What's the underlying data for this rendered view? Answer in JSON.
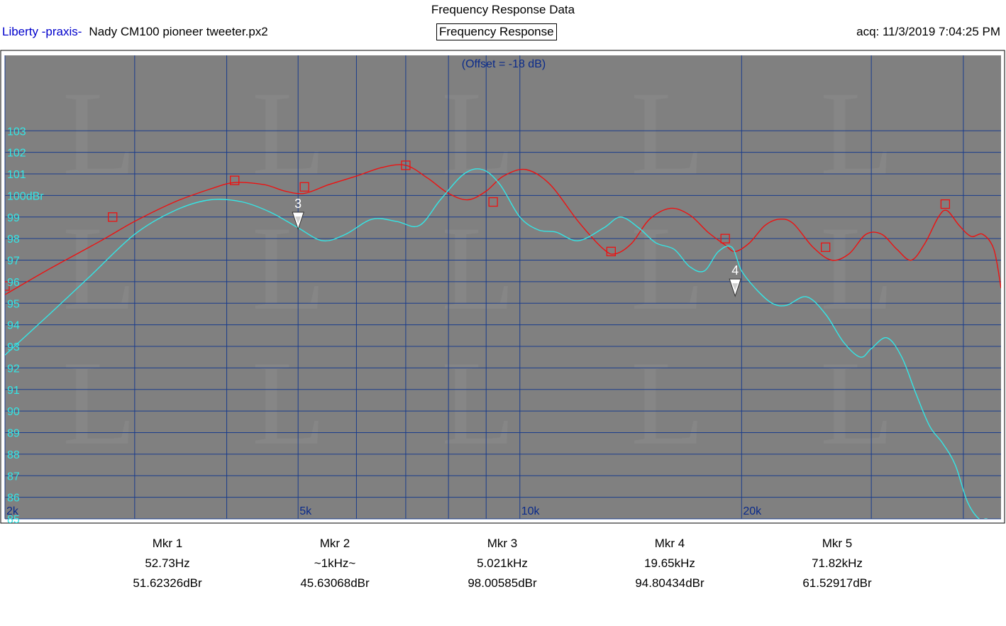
{
  "header": {
    "title": "Frequency Response Data",
    "brand": "Liberty -praxis-",
    "file": "Nady CM100 pioneer tweeter.px2",
    "view_label": "Frequency Response",
    "acquired": "acq: 11/3/2019 7:04:25 PM"
  },
  "chart_data": {
    "type": "line",
    "title": "",
    "offset_label": "(Offset = -18 dB)",
    "x_scale": "log",
    "xlim": [
      2000,
      45000
    ],
    "ylim": [
      85,
      106.5
    ],
    "y_ticks": [
      85,
      86,
      87,
      88,
      89,
      90,
      91,
      92,
      93,
      94,
      95,
      96,
      97,
      98,
      99,
      100,
      101,
      102,
      103
    ],
    "y_tick_labels": [
      "85",
      "86",
      "87",
      "88",
      "89",
      "90",
      "91",
      "92",
      "93",
      "94",
      "95",
      "96",
      "97",
      "98",
      "99",
      "100dBr",
      "101",
      "102",
      "103"
    ],
    "x_tick_labels": [
      {
        "x": 2000,
        "label": "2k"
      },
      {
        "x": 5000,
        "label": "5k"
      },
      {
        "x": 10000,
        "label": "10k"
      },
      {
        "x": 20000,
        "label": "20k"
      }
    ],
    "x_gridlines": [
      2000,
      3000,
      4000,
      5000,
      6000,
      7000,
      8000,
      9000,
      10000,
      20000,
      30000,
      40000
    ],
    "grid": true,
    "colors": {
      "background": "#808080",
      "grid": "#1a3c8c",
      "red": "#ee1111",
      "cyan": "#33e6e6",
      "tick_text": "#33e6e6",
      "x_tick_text": "#0a2a8a"
    },
    "series": [
      {
        "color": "#ee1111",
        "markers": "square",
        "points": [
          [
            2000,
            95.4
          ],
          [
            2300,
            96.6
          ],
          [
            2700,
            97.9
          ],
          [
            3000,
            98.8
          ],
          [
            3400,
            99.7
          ],
          [
            3800,
            100.3
          ],
          [
            4100,
            100.6
          ],
          [
            4500,
            100.5
          ],
          [
            4800,
            100.2
          ],
          [
            5100,
            100.1
          ],
          [
            5500,
            100.5
          ],
          [
            6000,
            100.9
          ],
          [
            6500,
            101.3
          ],
          [
            7000,
            101.4
          ],
          [
            7500,
            100.8
          ],
          [
            8000,
            100.1
          ],
          [
            8500,
            99.8
          ],
          [
            9000,
            100.2
          ],
          [
            9500,
            100.9
          ],
          [
            10200,
            101.2
          ],
          [
            11000,
            100.5
          ],
          [
            12000,
            98.8
          ],
          [
            13000,
            97.5
          ],
          [
            13500,
            97.3
          ],
          [
            14200,
            97.8
          ],
          [
            15000,
            98.9
          ],
          [
            16000,
            99.4
          ],
          [
            17000,
            99.1
          ],
          [
            18000,
            98.3
          ],
          [
            19000,
            97.7
          ],
          [
            19600,
            97.4
          ],
          [
            20500,
            97.8
          ],
          [
            21500,
            98.6
          ],
          [
            22500,
            98.9
          ],
          [
            23500,
            98.7
          ],
          [
            25000,
            97.6
          ],
          [
            26500,
            97.0
          ],
          [
            28000,
            97.3
          ],
          [
            29500,
            98.2
          ],
          [
            31000,
            98.2
          ],
          [
            32500,
            97.5
          ],
          [
            34000,
            97.0
          ],
          [
            35500,
            97.8
          ],
          [
            37000,
            99.0
          ],
          [
            38000,
            99.3
          ],
          [
            39500,
            98.6
          ],
          [
            41000,
            98.1
          ],
          [
            42500,
            98.2
          ],
          [
            44000,
            97.5
          ],
          [
            45000,
            95.7
          ]
        ],
        "marker_points": [
          [
            2000,
            95.8
          ],
          [
            2800,
            99.0
          ],
          [
            4100,
            100.7
          ],
          [
            5100,
            100.4
          ],
          [
            7000,
            101.4
          ],
          [
            9200,
            99.7
          ],
          [
            13300,
            97.4
          ],
          [
            19000,
            98.0
          ],
          [
            26000,
            97.6
          ],
          [
            37800,
            99.6
          ]
        ]
      },
      {
        "color": "#33e6e6",
        "markers": "none",
        "points": [
          [
            2000,
            92.6
          ],
          [
            2300,
            94.5
          ],
          [
            2600,
            96.2
          ],
          [
            3000,
            98.2
          ],
          [
            3400,
            99.3
          ],
          [
            3800,
            99.8
          ],
          [
            4200,
            99.7
          ],
          [
            4600,
            99.2
          ],
          [
            5000,
            98.5
          ],
          [
            5400,
            97.9
          ],
          [
            5800,
            98.2
          ],
          [
            6300,
            98.9
          ],
          [
            6800,
            98.8
          ],
          [
            7300,
            98.6
          ],
          [
            7800,
            99.8
          ],
          [
            8400,
            101.0
          ],
          [
            8900,
            101.2
          ],
          [
            9400,
            100.5
          ],
          [
            10000,
            99.0
          ],
          [
            10600,
            98.4
          ],
          [
            11200,
            98.3
          ],
          [
            12000,
            97.9
          ],
          [
            13000,
            98.5
          ],
          [
            13700,
            99.0
          ],
          [
            14500,
            98.5
          ],
          [
            15300,
            97.8
          ],
          [
            16200,
            97.5
          ],
          [
            17000,
            96.7
          ],
          [
            17800,
            96.5
          ],
          [
            18600,
            97.4
          ],
          [
            19400,
            97.6
          ],
          [
            20000,
            96.5
          ],
          [
            21000,
            95.6
          ],
          [
            22000,
            95.0
          ],
          [
            23000,
            94.9
          ],
          [
            24500,
            95.3
          ],
          [
            26000,
            94.5
          ],
          [
            27500,
            93.2
          ],
          [
            29000,
            92.5
          ],
          [
            30000,
            92.9
          ],
          [
            31500,
            93.4
          ],
          [
            33000,
            92.5
          ],
          [
            34500,
            90.8
          ],
          [
            36000,
            89.3
          ],
          [
            37500,
            88.5
          ],
          [
            39000,
            87.5
          ],
          [
            40500,
            85.8
          ],
          [
            42000,
            85.0
          ],
          [
            43000,
            85.0
          ],
          [
            44000,
            84.8
          ],
          [
            45000,
            84.6
          ]
        ]
      }
    ],
    "chart_markers": [
      {
        "label": "3",
        "x": 5000,
        "y": 98.5
      },
      {
        "label": "4",
        "x": 19600,
        "y": 95.4
      }
    ]
  },
  "markers": [
    {
      "name": "Mkr 1",
      "freq": "52.73Hz",
      "value": "51.62326dBr"
    },
    {
      "name": "Mkr 2",
      "freq": "~1kHz~",
      "value": "45.63068dBr"
    },
    {
      "name": "Mkr 3",
      "freq": "5.021kHz",
      "value": "98.00585dBr"
    },
    {
      "name": "Mkr 4",
      "freq": "19.65kHz",
      "value": "94.80434dBr"
    },
    {
      "name": "Mkr 5",
      "freq": "71.82kHz",
      "value": "61.52917dBr"
    }
  ]
}
